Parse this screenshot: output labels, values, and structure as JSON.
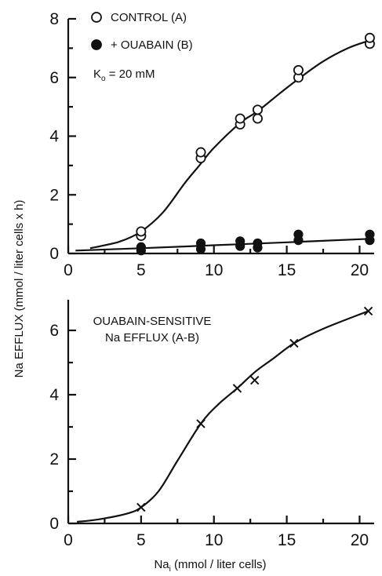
{
  "chart_data": [
    {
      "type": "scatter",
      "xlim": [
        0,
        21
      ],
      "ylim": [
        0,
        8
      ],
      "xticks": [
        "0",
        "5",
        "10",
        "15",
        "20"
      ],
      "yticks": [
        "0",
        "2",
        "4",
        "6",
        "8"
      ],
      "legend": [
        {
          "label": "CONTROL (A)",
          "marker": "open-circle"
        },
        {
          "label": "+ OUABAIN (B)",
          "marker": "filled-circle"
        }
      ],
      "annotation": {
        "main": "K",
        "sub": "o",
        "rest": " = 20 mM"
      },
      "series": [
        {
          "name": "CONTROL (A)",
          "marker": "open-circle",
          "points": [
            [
              5,
              0.6
            ],
            [
              5,
              0.75
            ],
            [
              9.1,
              3.25
            ],
            [
              9.1,
              3.45
            ],
            [
              11.8,
              4.4
            ],
            [
              11.8,
              4.6
            ],
            [
              13,
              4.6
            ],
            [
              13,
              4.9
            ],
            [
              15.8,
              6.0
            ],
            [
              15.8,
              6.25
            ],
            [
              20.7,
              7.15
            ],
            [
              20.7,
              7.35
            ]
          ],
          "curve": [
            [
              1.5,
              0.18
            ],
            [
              3.5,
              0.4
            ],
            [
              5,
              0.75
            ],
            [
              6.5,
              1.4
            ],
            [
              8,
              2.4
            ],
            [
              9,
              3.0
            ],
            [
              10,
              3.6
            ],
            [
              11.8,
              4.45
            ],
            [
              13,
              4.85
            ],
            [
              14.5,
              5.45
            ],
            [
              15.8,
              5.95
            ],
            [
              17.5,
              6.55
            ],
            [
              19.2,
              7.0
            ],
            [
              20.6,
              7.25
            ]
          ]
        },
        {
          "name": "+ OUABAIN (B)",
          "marker": "filled-circle",
          "points": [
            [
              5,
              0.1
            ],
            [
              5,
              0.22
            ],
            [
              9.1,
              0.15
            ],
            [
              9.1,
              0.35
            ],
            [
              11.8,
              0.25
            ],
            [
              11.8,
              0.42
            ],
            [
              13,
              0.2
            ],
            [
              13,
              0.35
            ],
            [
              15.8,
              0.45
            ],
            [
              15.8,
              0.65
            ],
            [
              20.7,
              0.45
            ],
            [
              20.7,
              0.65
            ]
          ],
          "curve": [
            [
              0.5,
              0.1
            ],
            [
              5,
              0.18
            ],
            [
              10,
              0.28
            ],
            [
              15,
              0.38
            ],
            [
              20.7,
              0.5
            ]
          ]
        }
      ]
    },
    {
      "type": "line",
      "title": "OUABAIN-SENSITIVE Na EFFLUX (A-B)",
      "title_lines": [
        "OUABAIN-SENSITIVE",
        "Na EFFLUX (A-B)"
      ],
      "xlim": [
        0,
        21
      ],
      "ylim": [
        0,
        7
      ],
      "xticks": [
        "0",
        "5",
        "10",
        "15",
        "20"
      ],
      "yticks": [
        "0",
        "2",
        "4",
        "6"
      ],
      "series": [
        {
          "marker": "x",
          "points": [
            [
              5,
              0.5
            ],
            [
              9.1,
              3.1
            ],
            [
              11.6,
              4.2
            ],
            [
              12.8,
              4.45
            ],
            [
              15.5,
              5.6
            ],
            [
              20.6,
              6.6
            ]
          ],
          "curve": [
            [
              0.6,
              0.05
            ],
            [
              2,
              0.12
            ],
            [
              4,
              0.3
            ],
            [
              5,
              0.5
            ],
            [
              6.2,
              1.0
            ],
            [
              7.5,
              1.95
            ],
            [
              9.1,
              3.1
            ],
            [
              10.3,
              3.7
            ],
            [
              11.6,
              4.2
            ],
            [
              12.8,
              4.7
            ],
            [
              14,
              5.1
            ],
            [
              15.5,
              5.6
            ],
            [
              17.5,
              6.05
            ],
            [
              20.6,
              6.6
            ]
          ]
        }
      ]
    }
  ],
  "ylabel": "Na EFFLUX (mmol / liter cells x h)",
  "xlabel": {
    "main": "Na",
    "sub": "i",
    "rest": "  (mmol / liter cells)"
  }
}
